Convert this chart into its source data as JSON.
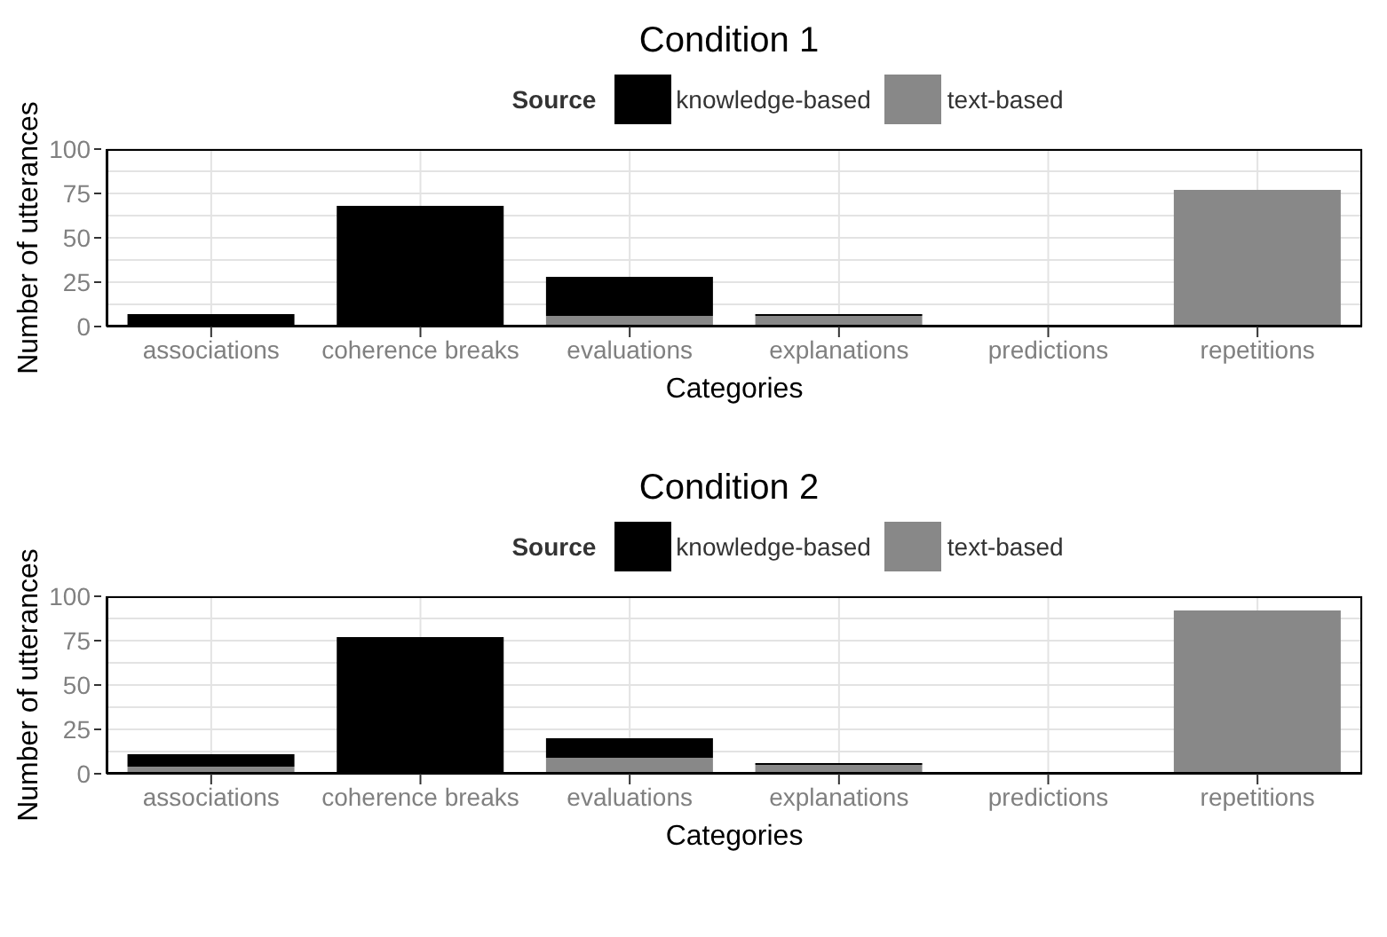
{
  "chart_data": [
    {
      "type": "bar",
      "title": "Condition 1",
      "legend_title": "Source",
      "xlabel": "Categories",
      "ylabel": "Number of utterances",
      "categories": [
        "associations",
        "coherence breaks",
        "evaluations",
        "explanations",
        "predictions",
        "repetitions"
      ],
      "stacked": true,
      "series": [
        {
          "name": "text-based",
          "color": "#888888",
          "values": [
            0,
            0,
            6,
            6,
            0,
            77
          ]
        },
        {
          "name": "knowledge-based",
          "color": "#000000",
          "values": [
            7,
            68,
            22,
            1,
            0,
            0
          ]
        }
      ],
      "ylim": [
        0,
        100
      ],
      "yticks": [
        0,
        {
          "value": 12.5,
          "label": null
        },
        25,
        {
          "value": 37.5,
          "label": null
        },
        50,
        {
          "value": 62.5,
          "label": null
        },
        75,
        {
          "value": 87.5,
          "label": null
        },
        100
      ],
      "grid": true,
      "legend": "top"
    },
    {
      "type": "bar",
      "title": "Condition 2",
      "legend_title": "Source",
      "xlabel": "Categories",
      "ylabel": "Number of utterances",
      "categories": [
        "associations",
        "coherence breaks",
        "evaluations",
        "explanations",
        "predictions",
        "repetitions"
      ],
      "stacked": true,
      "series": [
        {
          "name": "text-based",
          "color": "#888888",
          "values": [
            4,
            0,
            9,
            5,
            1,
            92
          ]
        },
        {
          "name": "knowledge-based",
          "color": "#000000",
          "values": [
            7,
            77,
            11,
            1,
            0,
            0
          ]
        }
      ],
      "ylim": [
        0,
        100
      ],
      "yticks": [
        0,
        {
          "value": 12.5,
          "label": null
        },
        25,
        {
          "value": 37.5,
          "label": null
        },
        50,
        {
          "value": 62.5,
          "label": null
        },
        75,
        {
          "value": 87.5,
          "label": null
        },
        100
      ],
      "grid": true,
      "legend": "top"
    }
  ]
}
